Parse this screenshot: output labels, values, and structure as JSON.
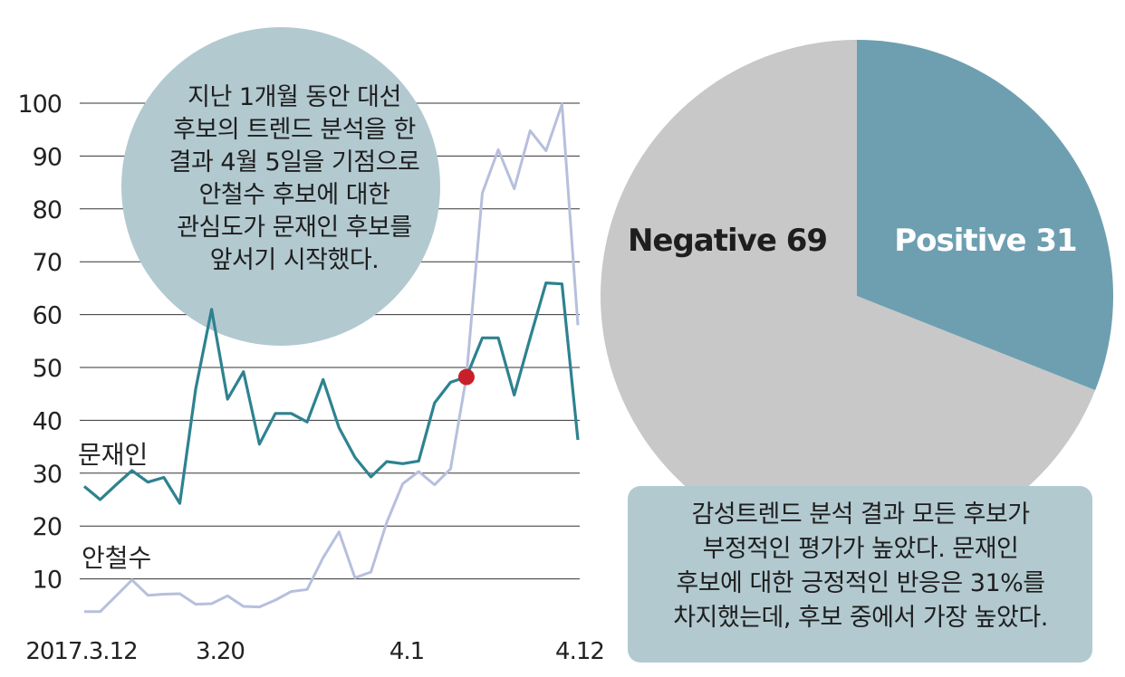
{
  "line_chart": {
    "type": "line",
    "x_ticks": [
      "2017.3.12",
      "3.20",
      "4.1",
      "4.12"
    ],
    "y_ticks": [
      10,
      20,
      30,
      40,
      50,
      60,
      70,
      80,
      90,
      100
    ],
    "ylim": [
      0,
      100
    ],
    "series": [
      {
        "name": "문재인",
        "color": "#2e8290",
        "values": [
          27.5,
          25,
          27.8,
          30.5,
          28.3,
          29.2,
          24.3,
          46,
          61,
          44,
          49.2,
          35.5,
          41.3,
          41.3,
          39.7,
          47.7,
          38.6,
          33,
          29.3,
          32.2,
          31.8,
          32.3,
          43.3,
          47.2,
          48.2,
          55.6,
          55.6,
          44.8,
          55.6,
          66,
          65.8,
          36.3
        ]
      },
      {
        "name": "안철수",
        "color": "#b7bfdd",
        "values": [
          3.8,
          3.8,
          6.8,
          9.8,
          6.9,
          7.1,
          7.2,
          5.2,
          5.3,
          6.8,
          4.8,
          4.7,
          6,
          7.6,
          8,
          14,
          18.9,
          10.2,
          11.3,
          20.7,
          28,
          30.3,
          27.8,
          30.8,
          48.2,
          83,
          91.2,
          83.8,
          94.8,
          91,
          99.8,
          58
        ]
      }
    ],
    "crossover_label": "",
    "crossover_point": {
      "index": 24,
      "value": 48.2,
      "color": "#c8202a"
    }
  },
  "pie_chart": {
    "type": "pie",
    "slices": [
      {
        "label": "Positive",
        "value": 31,
        "color": "#6d9fb1"
      },
      {
        "label": "Negative",
        "value": 69,
        "color": "#c8c8c8"
      }
    ]
  },
  "callout": {
    "lines": [
      "지난 1개월 동안 대선",
      "후보의 트렌드 분석을 한",
      "결과 4월 5일을 기점으로",
      "안철수 후보에 대한",
      "관심도가 문재인 후보를",
      "앞서기 시작했다."
    ],
    "color": "#b2c9d0"
  },
  "summary_box": {
    "lines": [
      "감성트렌드 분석 결과 모든 후보가",
      "부정적인 평가가 높았다. 문재인",
      "후보에 대한 긍정적인 반응은 31%를",
      "차지했는데, 후보 중에서 가장 높았다."
    ],
    "color": "#b2c9d0"
  },
  "chart_data": [
    {
      "type": "line",
      "x_ticks": [
        "2017.3.12",
        "3.20",
        "4.1",
        "4.12"
      ],
      "ylim": [
        0,
        100
      ],
      "series": [
        {
          "name": "문재인",
          "values": [
            27.5,
            25,
            27.8,
            30.5,
            28.3,
            29.2,
            24.3,
            46,
            61,
            44,
            49.2,
            35.5,
            41.3,
            41.3,
            39.7,
            47.7,
            38.6,
            33,
            29.3,
            32.2,
            31.8,
            32.3,
            43.3,
            47.2,
            48.2,
            55.6,
            55.6,
            44.8,
            55.6,
            66,
            65.8,
            36.3
          ]
        },
        {
          "name": "안철수",
          "values": [
            3.8,
            3.8,
            6.8,
            9.8,
            6.9,
            7.1,
            7.2,
            5.2,
            5.3,
            6.8,
            4.8,
            4.7,
            6,
            7.6,
            8,
            14,
            18.9,
            10.2,
            11.3,
            20.7,
            28,
            30.3,
            27.8,
            30.8,
            48.2,
            83,
            91.2,
            83.8,
            94.8,
            91,
            99.8,
            58
          ]
        }
      ]
    },
    {
      "type": "pie",
      "slices": [
        {
          "label": "Positive",
          "value": 31
        },
        {
          "label": "Negative",
          "value": 69
        }
      ]
    }
  ]
}
